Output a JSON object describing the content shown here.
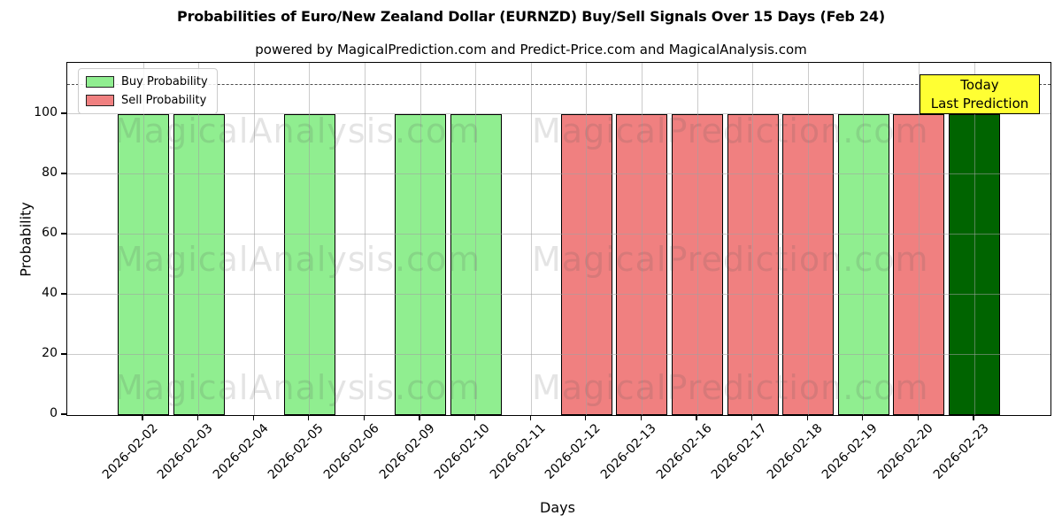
{
  "title": "Probabilities of Euro/New Zealand Dollar (EURNZD) Buy/Sell Signals Over 15 Days (Feb 24)",
  "subtitle": "powered by MagicalPrediction.com and Predict-Price.com and MagicalAnalysis.com",
  "legend": {
    "items": [
      {
        "label": "Buy Probability",
        "color": "#90ee90"
      },
      {
        "label": "Sell Probability",
        "color": "#f08080"
      }
    ]
  },
  "annotation": {
    "lines": [
      "Today",
      "Last Prediction"
    ],
    "bg_color": "#ffff33"
  },
  "watermarks": {
    "left_text": "MagicalAnalysis.com",
    "right_text": "MagicalPrediction.com"
  },
  "chart_data": {
    "type": "bar",
    "title": "Probabilities of Euro/New Zealand Dollar (EURNZD) Buy/Sell Signals Over 15 Days (Feb 24)",
    "subtitle": "powered by MagicalPrediction.com and Predict-Price.com and MagicalAnalysis.com",
    "xlabel": "Days",
    "ylabel": "Probability",
    "ylim": [
      0,
      117
    ],
    "yticks": [
      0,
      20,
      40,
      60,
      80,
      100
    ],
    "grid": true,
    "legend_position": "upper left",
    "threshold_line": {
      "y": 110,
      "style": "dashed",
      "color": "#4d4d4d"
    },
    "categories": [
      "2026-02-02",
      "2026-02-03",
      "2026-02-04",
      "2026-02-05",
      "2026-02-06",
      "2026-02-09",
      "2026-02-10",
      "2026-02-11",
      "2026-02-12",
      "2026-02-13",
      "2026-02-16",
      "2026-02-17",
      "2026-02-18",
      "2026-02-19",
      "2026-02-20",
      "2026-02-23"
    ],
    "series": [
      {
        "name": "Buy Probability",
        "color": "#90ee90",
        "values": [
          100,
          100,
          0,
          100,
          0,
          100,
          100,
          0,
          0,
          0,
          0,
          0,
          0,
          100,
          0,
          0
        ]
      },
      {
        "name": "Sell Probability",
        "color": "#f08080",
        "values": [
          0,
          0,
          0,
          0,
          0,
          0,
          0,
          0,
          100,
          100,
          100,
          100,
          100,
          0,
          100,
          0
        ]
      },
      {
        "name": "Last Prediction (Today)",
        "color": "#006400",
        "values": [
          0,
          0,
          0,
          0,
          0,
          0,
          0,
          0,
          0,
          0,
          0,
          0,
          0,
          0,
          0,
          100
        ]
      }
    ]
  }
}
